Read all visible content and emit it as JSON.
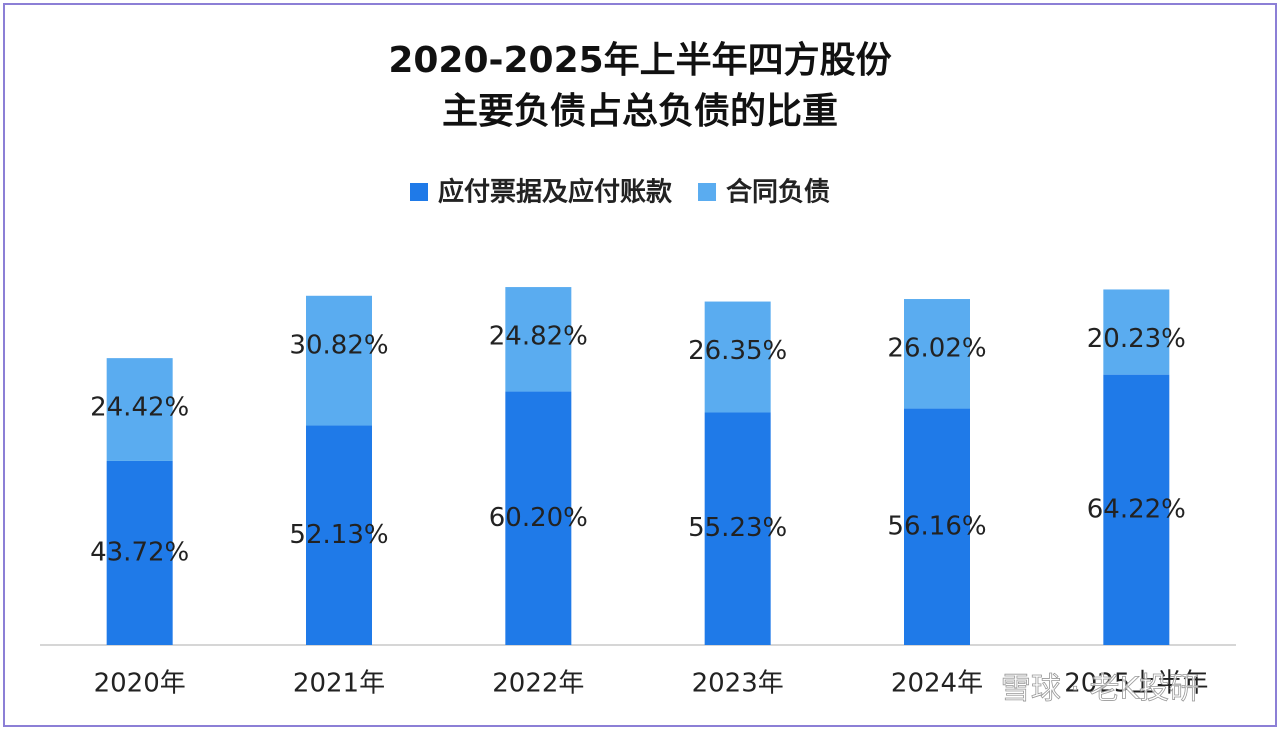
{
  "chart_data": {
    "type": "stacked-bar",
    "title": [
      "2020-2025年上半年四方股份",
      "主要负债占总负债的比重"
    ],
    "categories": [
      "2020年",
      "2021年",
      "2022年",
      "2023年",
      "2024年",
      "2025上半年"
    ],
    "series": [
      {
        "name": "应付票据及应付账款",
        "color": "#1f7ae8",
        "values": [
          43.72,
          52.13,
          60.2,
          55.23,
          56.16,
          64.22
        ],
        "value_labels": [
          "43.72%",
          "52.13%",
          "60.20%",
          "55.23%",
          "56.16%",
          "64.22%"
        ]
      },
      {
        "name": "合同负债",
        "color": "#5aacf0",
        "values": [
          24.42,
          30.82,
          24.82,
          26.35,
          26.02,
          20.23
        ],
        "value_labels": [
          "24.42%",
          "30.82%",
          "24.82%",
          "26.35%",
          "26.02%",
          "20.23%"
        ]
      }
    ],
    "watermark": "雪球 · 老K投研"
  }
}
